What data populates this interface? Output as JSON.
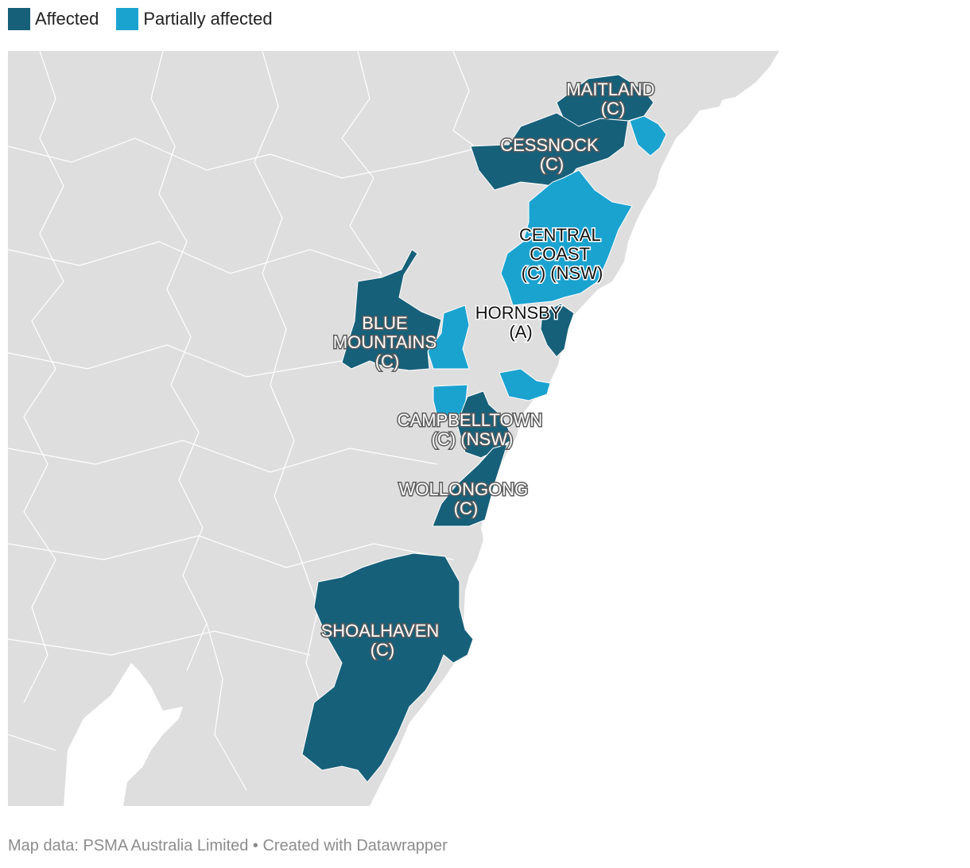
{
  "legend": {
    "affected": {
      "label": "Affected",
      "color": "#17607a"
    },
    "partially_affected": {
      "label": "Partially affected",
      "color": "#1ba3d0"
    }
  },
  "colors": {
    "land": "#dedede",
    "boundary": "#ffffff",
    "water": "#ffffff"
  },
  "regions": [
    {
      "id": "maitland",
      "status": "affected",
      "label_lines": [
        "MAITLAND",
        "(C)"
      ]
    },
    {
      "id": "cessnock",
      "status": "affected",
      "label_lines": [
        "CESSNOCK",
        "(C)"
      ]
    },
    {
      "id": "central-coast",
      "status": "partially_affected",
      "label_lines": [
        "CENTRAL",
        "COAST",
        "(C) (NSW)"
      ]
    },
    {
      "id": "blue-mountains",
      "status": "affected",
      "label_lines": [
        "BLUE",
        "MOUNTAINS",
        "(C)"
      ]
    },
    {
      "id": "hornsby",
      "status": "affected",
      "label_lines": [
        "HORNSBY",
        "(A)"
      ]
    },
    {
      "id": "campbelltown",
      "status": "affected",
      "label_lines": [
        "CAMPBELLTOWN",
        "(C) (NSW)"
      ]
    },
    {
      "id": "wollongong",
      "status": "affected",
      "label_lines": [
        "WOLLONGONG",
        "(C)"
      ]
    },
    {
      "id": "shoalhaven",
      "status": "affected",
      "label_lines": [
        "SHOALHAVEN",
        "(C)"
      ]
    }
  ],
  "footer": "Map data: PSMA Australia Limited • Created with Datawrapper"
}
